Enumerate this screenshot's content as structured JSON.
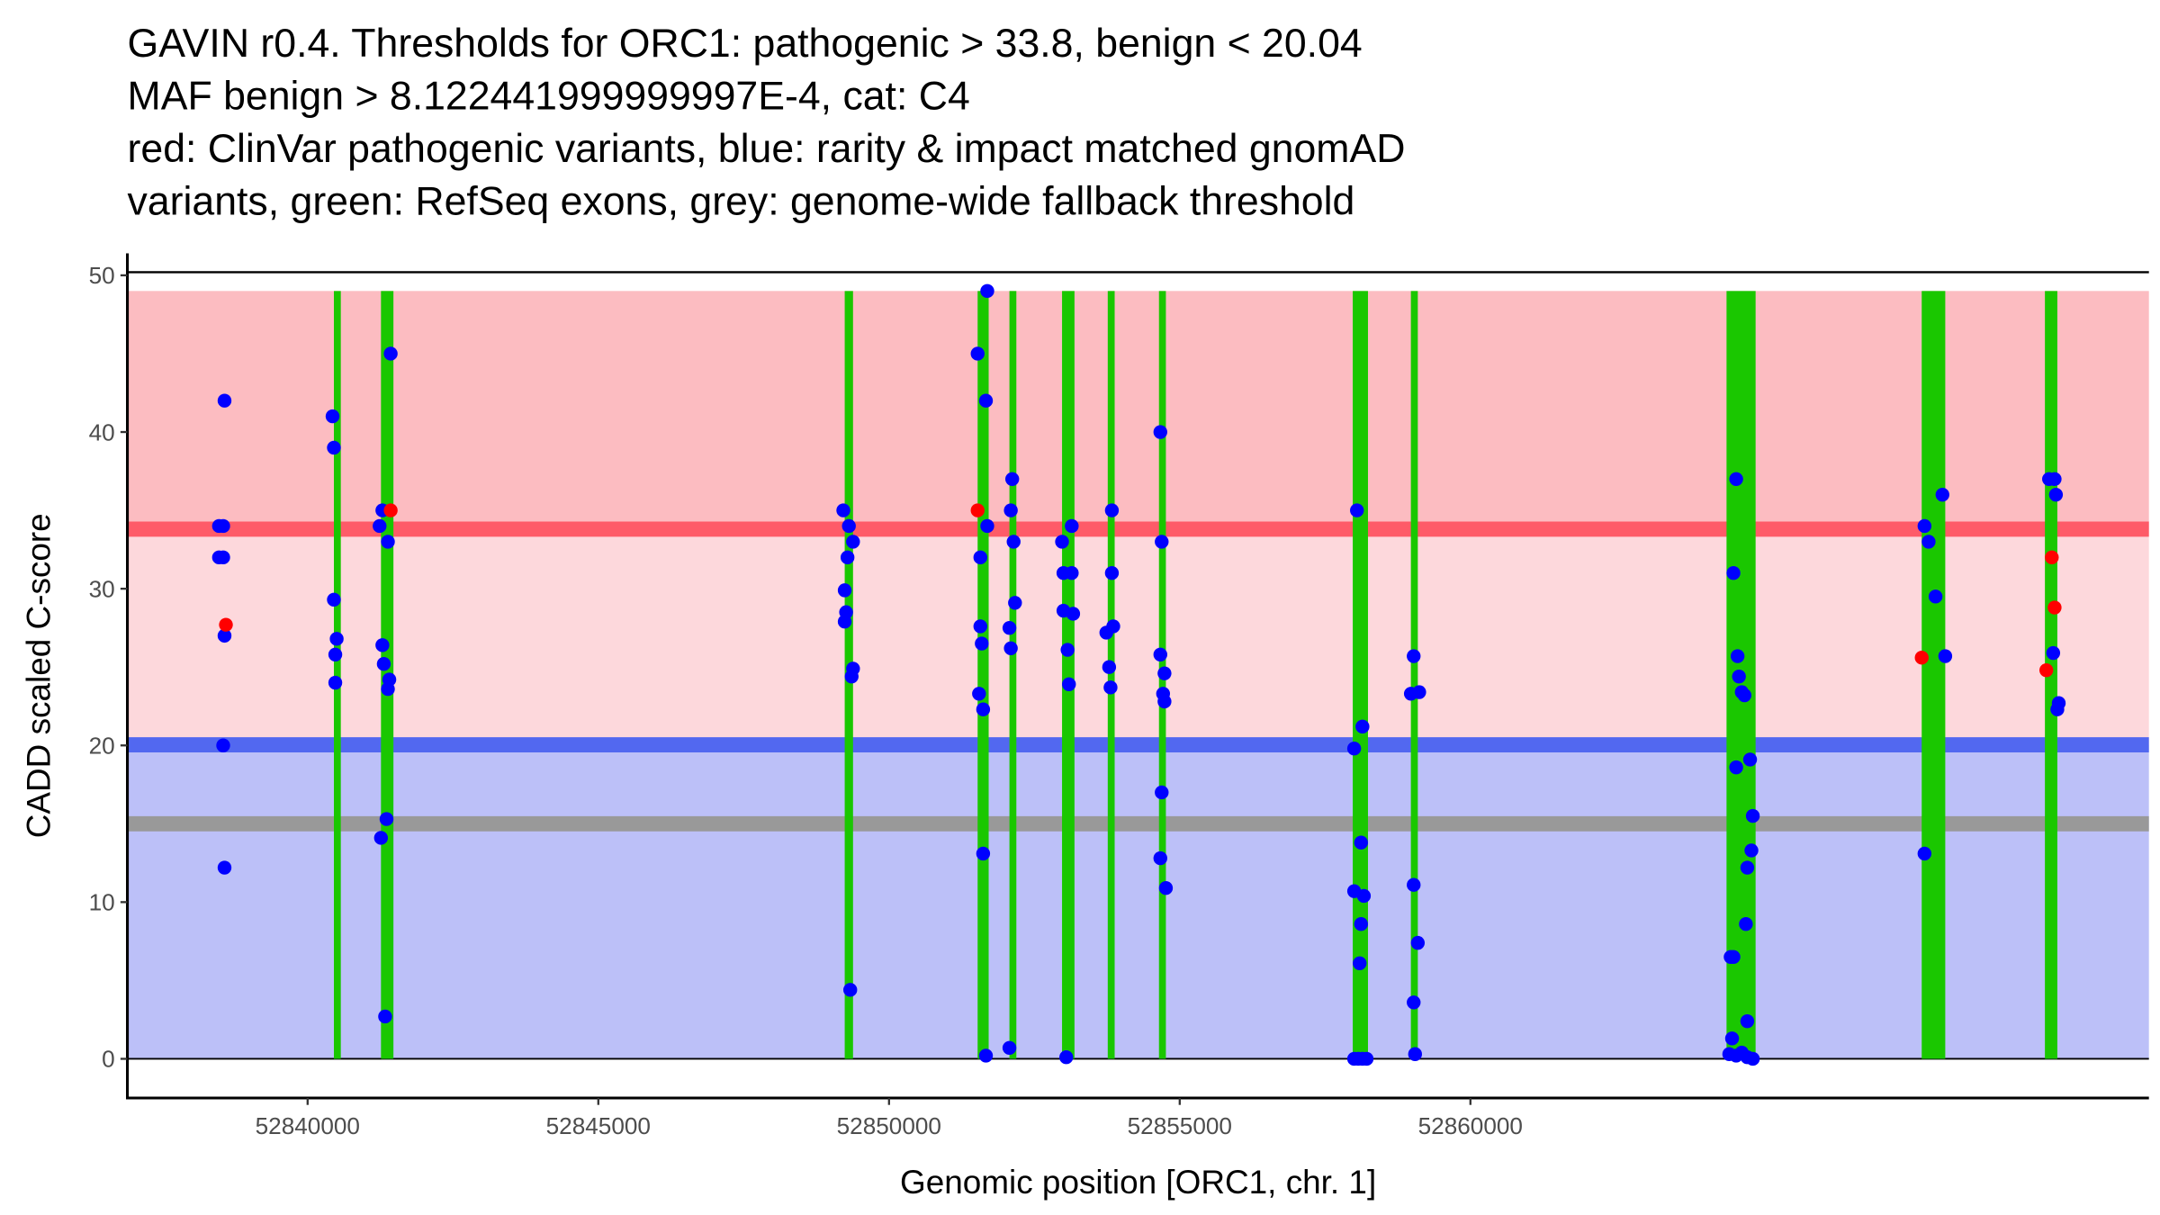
{
  "chart_data": {
    "type": "scatter",
    "title_lines": [
      "GAVIN r0.4. Thresholds for ORC1: pathogenic > 33.8, benign < 20.04",
      "MAF benign > 8.122441999999997E-4, cat: C4",
      "red: ClinVar pathogenic variants, blue: rarity & impact matched gnomAD",
      "variants, green: RefSeq exons, grey: genome-wide fallback threshold"
    ],
    "xlabel": "Genomic position [ORC1, chr. 1]",
    "ylabel": "CADD scaled C-score",
    "xlim": [
      52836900,
      52871670
    ],
    "ylim": [
      -2.5,
      51.4
    ],
    "x_ticks": [
      52840000,
      52845000,
      52850000,
      52855000,
      52860000
    ],
    "x_tick_labels": [
      "52840000",
      "52845000",
      "52850000",
      "52855000",
      "52860000"
    ],
    "y_ticks": [
      0,
      10,
      20,
      30,
      40,
      50
    ],
    "y_tick_labels": [
      "0",
      "10",
      "20",
      "30",
      "40",
      "50"
    ],
    "grid": false,
    "thresholds": {
      "pathogenic": 33.8,
      "benign": 20.04,
      "fallback": 15,
      "max_score": 49
    },
    "colors": {
      "pathogenic_zone": "#fcbcc1",
      "mid_zone": "#fdd8dc",
      "benign_zone": "#bcc0f8",
      "pathogenic_line": "#fe5b68",
      "benign_line": "#5268f0",
      "fallback_line": "#999999",
      "exon": "#1ac700",
      "clinvar": "#ff0000",
      "gnomad": "#0000ff"
    },
    "exons": [
      [
        52840452,
        52840571
      ],
      [
        52841262,
        52841476
      ],
      [
        52849238,
        52849381
      ],
      [
        52851524,
        52851714
      ],
      [
        52852071,
        52852190
      ],
      [
        52852976,
        52853190
      ],
      [
        52853762,
        52853881
      ],
      [
        52854643,
        52854762
      ],
      [
        52857976,
        52858238
      ],
      [
        52858976,
        52859095
      ],
      [
        52864405,
        52864905
      ],
      [
        52867762,
        52868167
      ],
      [
        52869881,
        52870095
      ]
    ],
    "series": [
      {
        "name": "gnomAD (blue)",
        "points": [
          [
            52838476,
            34
          ],
          [
            52838548,
            34
          ],
          [
            52838476,
            32
          ],
          [
            52838548,
            32
          ],
          [
            52838571,
            42
          ],
          [
            52838571,
            27
          ],
          [
            52838548,
            20
          ],
          [
            52838571,
            12.2
          ],
          [
            52840429,
            41
          ],
          [
            52840452,
            39
          ],
          [
            52840452,
            29.3
          ],
          [
            52840500,
            26.8
          ],
          [
            52840476,
            25.8
          ],
          [
            52840476,
            24
          ],
          [
            52841429,
            45
          ],
          [
            52841286,
            35
          ],
          [
            52841238,
            34
          ],
          [
            52841381,
            33
          ],
          [
            52841286,
            26.4
          ],
          [
            52841310,
            25.2
          ],
          [
            52841405,
            24.2
          ],
          [
            52841381,
            23.6
          ],
          [
            52841357,
            15.3
          ],
          [
            52841262,
            14.1
          ],
          [
            52841333,
            2.7
          ],
          [
            52849214,
            35
          ],
          [
            52849310,
            34
          ],
          [
            52849381,
            33
          ],
          [
            52849286,
            32
          ],
          [
            52849238,
            29.9
          ],
          [
            52849262,
            28.5
          ],
          [
            52849238,
            27.9
          ],
          [
            52849381,
            24.9
          ],
          [
            52849357,
            24.4
          ],
          [
            52849333,
            4.4
          ],
          [
            52851690,
            49
          ],
          [
            52851524,
            45
          ],
          [
            52851667,
            42
          ],
          [
            52851690,
            34
          ],
          [
            52851571,
            32
          ],
          [
            52851571,
            27.6
          ],
          [
            52851595,
            26.5
          ],
          [
            52851548,
            23.3
          ],
          [
            52851619,
            22.3
          ],
          [
            52851619,
            13.1
          ],
          [
            52851667,
            0.2
          ],
          [
            52852119,
            37
          ],
          [
            52852095,
            35
          ],
          [
            52852143,
            33
          ],
          [
            52852167,
            29.1
          ],
          [
            52852071,
            27.5
          ],
          [
            52852095,
            26.2
          ],
          [
            52852071,
            0.7
          ],
          [
            52853143,
            34
          ],
          [
            52852976,
            33
          ],
          [
            52853000,
            31
          ],
          [
            52853143,
            31
          ],
          [
            52853000,
            28.6
          ],
          [
            52853167,
            28.4
          ],
          [
            52853071,
            26.1
          ],
          [
            52853095,
            23.9
          ],
          [
            52853048,
            0.1
          ],
          [
            52853833,
            35
          ],
          [
            52853833,
            31
          ],
          [
            52853857,
            27.6
          ],
          [
            52853738,
            27.2
          ],
          [
            52853786,
            25
          ],
          [
            52853810,
            23.7
          ],
          [
            52854667,
            40
          ],
          [
            52854690,
            33
          ],
          [
            52854667,
            25.8
          ],
          [
            52854738,
            24.6
          ],
          [
            52854714,
            23.3
          ],
          [
            52854738,
            22.8
          ],
          [
            52854690,
            17
          ],
          [
            52854667,
            12.8
          ],
          [
            52854762,
            10.9
          ],
          [
            52858048,
            35
          ],
          [
            52858143,
            21.2
          ],
          [
            52858000,
            19.8
          ],
          [
            52858119,
            13.8
          ],
          [
            52858000,
            10.7
          ],
          [
            52858167,
            10.4
          ],
          [
            52858119,
            8.6
          ],
          [
            52858095,
            6.1
          ],
          [
            52858000,
            0
          ],
          [
            52858071,
            0
          ],
          [
            52858143,
            0
          ],
          [
            52858214,
            0
          ],
          [
            52859024,
            25.7
          ],
          [
            52858976,
            23.3
          ],
          [
            52859119,
            23.4
          ],
          [
            52859024,
            11.1
          ],
          [
            52859095,
            7.4
          ],
          [
            52859024,
            3.6
          ],
          [
            52859048,
            0.3
          ],
          [
            52864571,
            37
          ],
          [
            52864524,
            31
          ],
          [
            52864595,
            25.7
          ],
          [
            52864619,
            24.4
          ],
          [
            52864667,
            23.4
          ],
          [
            52864714,
            23.2
          ],
          [
            52864810,
            19.1
          ],
          [
            52864571,
            18.6
          ],
          [
            52864857,
            15.5
          ],
          [
            52864833,
            13.3
          ],
          [
            52864762,
            12.2
          ],
          [
            52864738,
            8.6
          ],
          [
            52864476,
            6.5
          ],
          [
            52864524,
            6.5
          ],
          [
            52864762,
            2.4
          ],
          [
            52864500,
            1.3
          ],
          [
            52864452,
            0.3
          ],
          [
            52864571,
            0.2
          ],
          [
            52864667,
            0.4
          ],
          [
            52864762,
            0.1
          ],
          [
            52864857,
            0
          ],
          [
            52867810,
            34
          ],
          [
            52867881,
            33
          ],
          [
            52868119,
            36
          ],
          [
            52868000,
            29.5
          ],
          [
            52868167,
            25.7
          ],
          [
            52867810,
            13.1
          ],
          [
            52869952,
            37
          ],
          [
            52870048,
            37
          ],
          [
            52870071,
            36
          ],
          [
            52870024,
            25.9
          ],
          [
            52870119,
            22.7
          ],
          [
            52870095,
            22.3
          ]
        ]
      },
      {
        "name": "ClinVar (red)",
        "points": [
          [
            52838595,
            27.7
          ],
          [
            52841429,
            35
          ],
          [
            52851524,
            35
          ],
          [
            52867762,
            25.6
          ],
          [
            52870000,
            32
          ],
          [
            52870048,
            28.8
          ],
          [
            52869905,
            24.8
          ]
        ]
      }
    ]
  }
}
